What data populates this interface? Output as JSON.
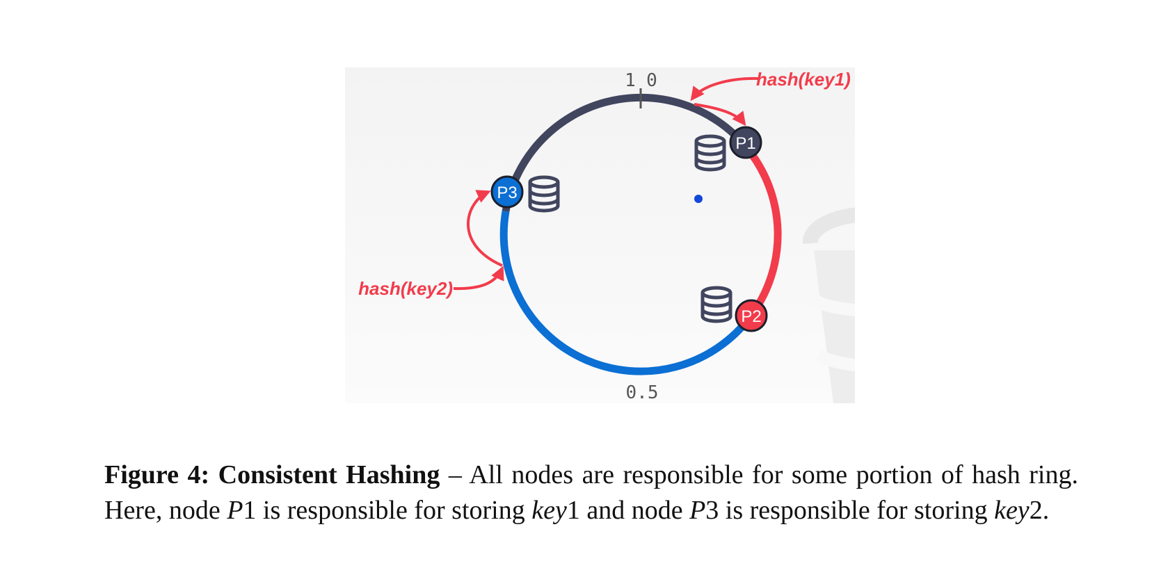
{
  "figure": {
    "tick_top": "1",
    "tick_top_right": "0",
    "tick_bottom": "0.5",
    "labels": {
      "hash_key1": "hash(key1)",
      "hash_key2": "hash(key2)"
    },
    "nodes": [
      {
        "id": "p1",
        "label": "P1",
        "color": "#41455e"
      },
      {
        "id": "p2",
        "label": "P2",
        "color": "#f23c4b"
      },
      {
        "id": "p3",
        "label": "P3",
        "color": "#0b6fd4"
      }
    ],
    "colors": {
      "ring_p1": "#41455e",
      "ring_p2": "#f23c4b",
      "ring_p3": "#0b6fd4",
      "arrow": "#f23c4b",
      "center_dot": "#1448d8",
      "panel_bg": "#f5f5f6"
    }
  },
  "caption": {
    "label": "Figure 4: Consistent Hashing",
    "dash": " – ",
    "t1": "All nodes are responsible for some portion of hash ring. Here, node ",
    "p1_var": "P",
    "p1_num": "1",
    "t2": " is responsible for storing ",
    "key_var_1": "key",
    "key_num_1": "1",
    "t3": " and node ",
    "p3_var": "P",
    "p3_num": "3",
    "t4": " is responsible for storing ",
    "key_var_2": "key",
    "key_num_2": "2",
    "t5": "."
  }
}
